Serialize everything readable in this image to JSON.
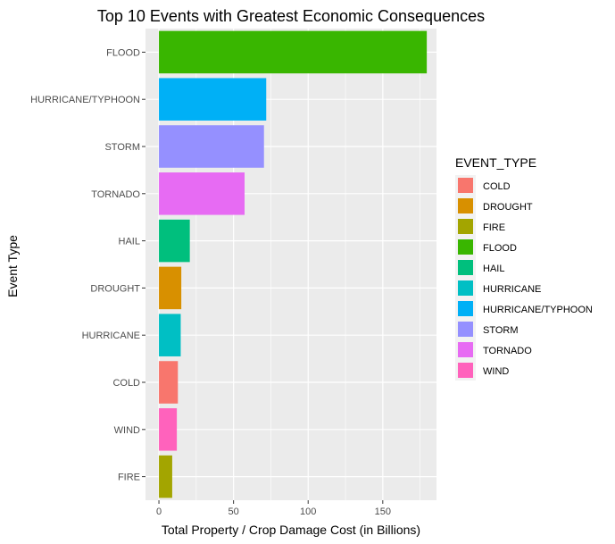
{
  "chart_data": {
    "type": "bar",
    "orientation": "horizontal",
    "title": "Top 10 Events with Greatest Economic Consequences",
    "xlabel": "Total Property / Crop Damage Cost (in Billions)",
    "ylabel": "Event Type",
    "xlim": [
      -9,
      186
    ],
    "xticks": [
      0,
      50,
      100,
      150
    ],
    "grid": true,
    "legend_title": "EVENT_TYPE",
    "legend_position": "right",
    "categories": [
      "FLOOD",
      "HURRICANE/TYPHOON",
      "STORM",
      "TORNADO",
      "HAIL",
      "DROUGHT",
      "HURRICANE",
      "COLD",
      "WIND",
      "FIRE"
    ],
    "values": [
      179.5,
      71.9,
      70.4,
      57.4,
      20.7,
      15.0,
      14.6,
      12.7,
      12.0,
      8.9
    ],
    "legend": [
      {
        "label": "COLD",
        "color": "#F8766D"
      },
      {
        "label": "DROUGHT",
        "color": "#D89000"
      },
      {
        "label": "FIRE",
        "color": "#A3A500"
      },
      {
        "label": "FLOOD",
        "color": "#39B600"
      },
      {
        "label": "HAIL",
        "color": "#00BF7D"
      },
      {
        "label": "HURRICANE",
        "color": "#00BFC4"
      },
      {
        "label": "HURRICANE/TYPHOON",
        "color": "#00B0F6"
      },
      {
        "label": "STORM",
        "color": "#9590FF"
      },
      {
        "label": "TORNADO",
        "color": "#E76BF3"
      },
      {
        "label": "WIND",
        "color": "#FF62BC"
      }
    ]
  }
}
